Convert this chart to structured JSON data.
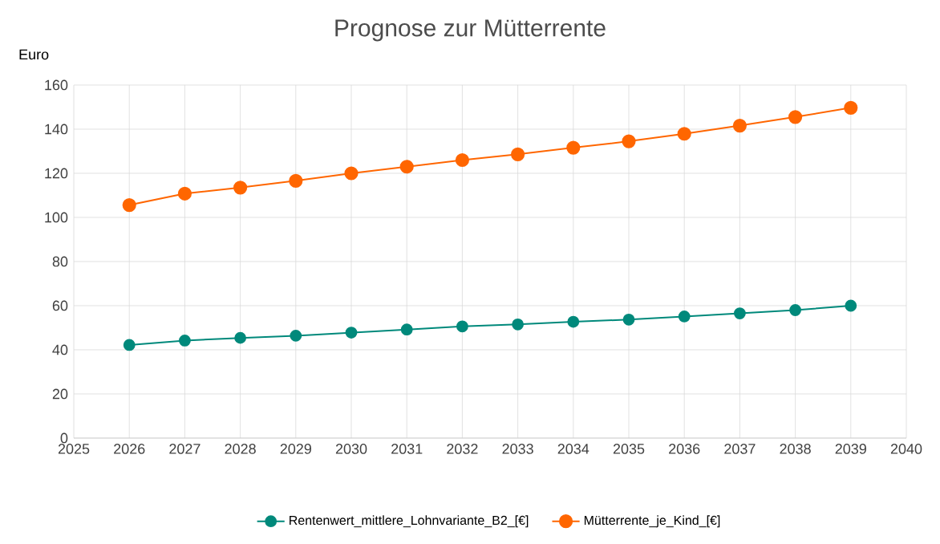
{
  "chart_data": {
    "type": "line",
    "title": "Prognose zur Mütterrente",
    "ylabel": "Euro",
    "x": [
      2026,
      2027,
      2028,
      2029,
      2030,
      2031,
      2032,
      2033,
      2034,
      2035,
      2036,
      2037,
      2038,
      2039
    ],
    "series": [
      {
        "name": "Rentenwert_mittlere_Lohnvariante_B2_[€]",
        "color": "#00897b",
        "values": [
          42.2,
          44.2,
          45.4,
          46.4,
          47.8,
          49.2,
          50.6,
          51.5,
          52.7,
          53.7,
          55.1,
          56.5,
          58.0,
          60.0
        ]
      },
      {
        "name": "Mütterrente_je_Kind_[€]",
        "color": "#ff6600",
        "values": [
          105.6,
          110.8,
          113.5,
          116.6,
          120.0,
          123.0,
          126.0,
          128.6,
          131.6,
          134.5,
          137.9,
          141.6,
          145.5,
          149.7
        ]
      }
    ],
    "xlim": [
      2025,
      2040
    ],
    "xticks": [
      2025,
      2026,
      2027,
      2028,
      2029,
      2030,
      2031,
      2032,
      2033,
      2034,
      2035,
      2036,
      2037,
      2038,
      2039,
      2040
    ],
    "ylim": [
      0,
      160
    ],
    "yticks": [
      0,
      20,
      40,
      60,
      80,
      100,
      120,
      140,
      160
    ],
    "grid": true,
    "legend": "bottom",
    "marker": "circle",
    "line_style": "solid"
  }
}
